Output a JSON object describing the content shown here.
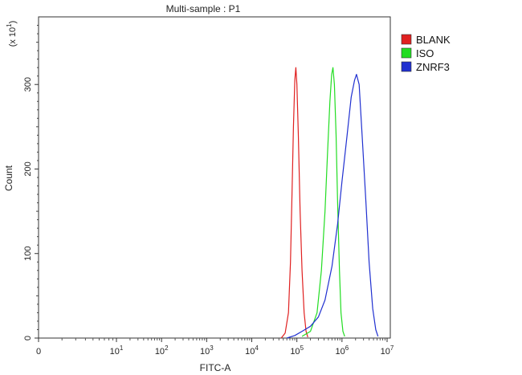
{
  "chart_data": {
    "type": "line",
    "title": "Multi-sample : P1",
    "xlabel": "FITC-A",
    "ylabel": "Count",
    "y_multiplier_label": "(x 10^1)",
    "x_scale": "log",
    "xlim": [
      0,
      10000000
    ],
    "ylim": [
      0,
      380
    ],
    "x_ticks": [
      "0",
      "10^1",
      "10^2",
      "10^3",
      "10^4",
      "10^5",
      "10^6",
      "10^7"
    ],
    "y_ticks": [
      0,
      100,
      200,
      300
    ],
    "grid": false,
    "legend_position": "top-right",
    "series": [
      {
        "name": "BLANK",
        "color": "#e02020",
        "points": [
          [
            45000,
            0
          ],
          [
            55000,
            6
          ],
          [
            65000,
            30
          ],
          [
            72000,
            90
          ],
          [
            78000,
            170
          ],
          [
            84000,
            250
          ],
          [
            90000,
            305
          ],
          [
            95000,
            320
          ],
          [
            100000,
            300
          ],
          [
            108000,
            240
          ],
          [
            118000,
            150
          ],
          [
            130000,
            80
          ],
          [
            145000,
            30
          ],
          [
            160000,
            8
          ],
          [
            175000,
            1
          ]
        ]
      },
      {
        "name": "ISO",
        "color": "#22dd22",
        "points": [
          [
            130000,
            2
          ],
          [
            200000,
            8
          ],
          [
            280000,
            30
          ],
          [
            350000,
            80
          ],
          [
            420000,
            150
          ],
          [
            480000,
            220
          ],
          [
            540000,
            280
          ],
          [
            590000,
            312
          ],
          [
            630000,
            320
          ],
          [
            680000,
            300
          ],
          [
            740000,
            240
          ],
          [
            800000,
            160
          ],
          [
            880000,
            80
          ],
          [
            950000,
            30
          ],
          [
            1050000,
            8
          ],
          [
            1150000,
            2
          ]
        ]
      },
      {
        "name": "ZNRF3",
        "color": "#2030d0",
        "points": [
          [
            60000,
            0
          ],
          [
            90000,
            3
          ],
          [
            130000,
            8
          ],
          [
            200000,
            14
          ],
          [
            300000,
            25
          ],
          [
            420000,
            45
          ],
          [
            600000,
            85
          ],
          [
            800000,
            135
          ],
          [
            1000000,
            185
          ],
          [
            1300000,
            240
          ],
          [
            1600000,
            285
          ],
          [
            1900000,
            305
          ],
          [
            2100000,
            312
          ],
          [
            2400000,
            300
          ],
          [
            2800000,
            240
          ],
          [
            3400000,
            160
          ],
          [
            4000000,
            90
          ],
          [
            4800000,
            35
          ],
          [
            5600000,
            10
          ],
          [
            6300000,
            2
          ]
        ]
      }
    ]
  }
}
